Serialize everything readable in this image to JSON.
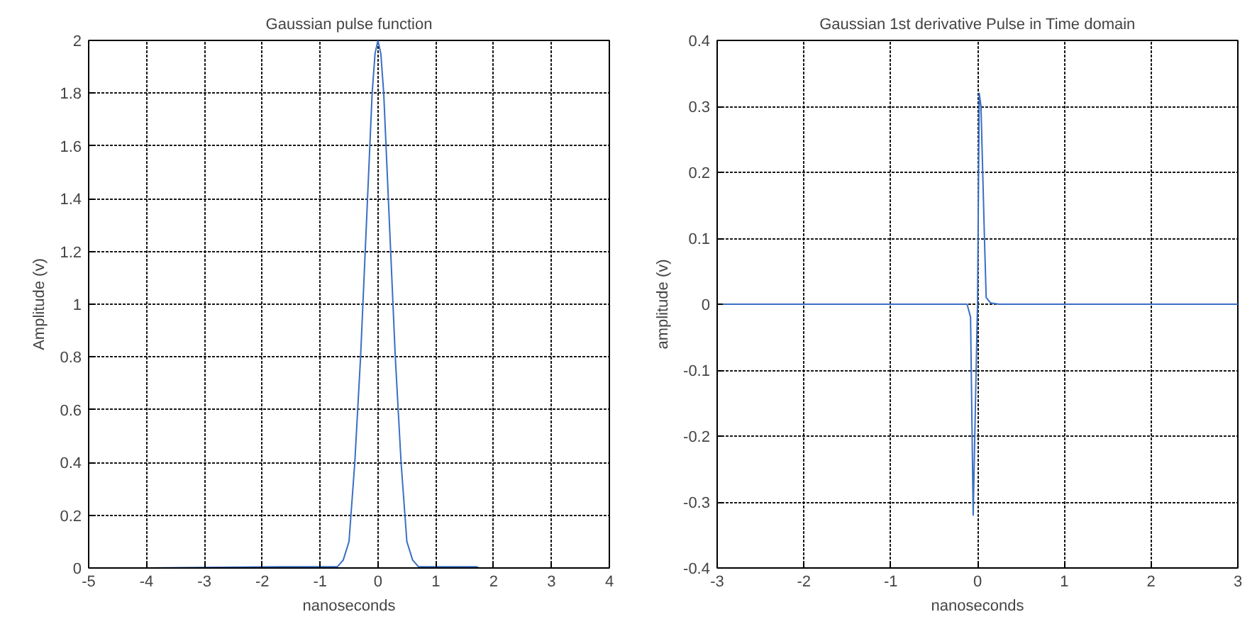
{
  "chart_data": [
    {
      "type": "line",
      "title": "Gaussian pulse function",
      "xlabel": "nanoseconds",
      "ylabel": "Amplitude (v)",
      "xlim": [
        -5,
        4
      ],
      "ylim": [
        0,
        2
      ],
      "xticks": [
        -5,
        -4,
        -3,
        -2,
        -1,
        0,
        1,
        2,
        3,
        4
      ],
      "yticks": [
        0,
        0.2,
        0.4,
        0.6,
        0.8,
        1,
        1.2,
        1.4,
        1.6,
        1.8,
        2
      ],
      "grid": true,
      "series": [
        {
          "color": "#3a6fc4",
          "x": [
            -4,
            -1.7,
            -0.7,
            -0.6,
            -0.5,
            -0.4,
            -0.3,
            -0.2,
            -0.1,
            -0.05,
            0,
            0.05,
            0.1,
            0.2,
            0.3,
            0.4,
            0.5,
            0.6,
            0.7,
            1.7,
            1.75,
            4
          ],
          "values": [
            0,
            0.005,
            0.005,
            0.03,
            0.1,
            0.4,
            0.8,
            1.3,
            1.8,
            1.95,
            2,
            1.95,
            1.8,
            1.3,
            0.8,
            0.4,
            0.1,
            0.03,
            0.005,
            0.005,
            0,
            0
          ]
        }
      ]
    },
    {
      "type": "line",
      "title": "Gaussian 1st derivative Pulse in Time domain",
      "xlabel": "nanoseconds",
      "ylabel": "amplitude (v)",
      "xlim": [
        -3,
        3
      ],
      "ylim": [
        -0.4,
        0.4
      ],
      "xticks": [
        -3,
        -2,
        -1,
        0,
        1,
        2,
        3
      ],
      "yticks": [
        -0.4,
        -0.3,
        -0.2,
        -0.1,
        0,
        0.1,
        0.2,
        0.3,
        0.4
      ],
      "grid": true,
      "series": [
        {
          "color": "#3a6fc4",
          "x": [
            -3,
            -0.12,
            -0.1,
            -0.08,
            -0.05,
            0,
            0.02,
            0.04,
            0.08,
            0.1,
            0.15,
            0.25,
            3
          ],
          "values": [
            0,
            0,
            -0.01,
            -0.02,
            -0.32,
            0,
            0.32,
            0.3,
            0.1,
            0.01,
            0.002,
            0,
            0
          ]
        }
      ]
    }
  ]
}
